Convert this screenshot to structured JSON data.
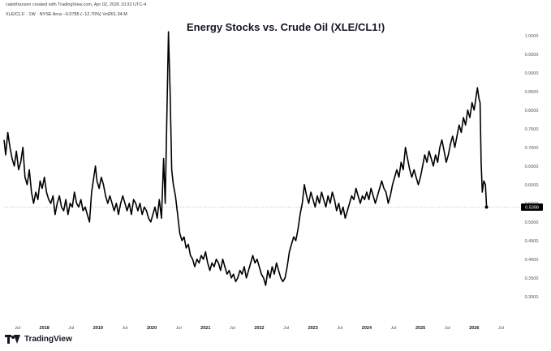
{
  "header": {
    "credit": "calebfranzen created with TradingView.com, Apr 02, 2026 10:32 UTC-4",
    "legend": "XLE/CL1! · 1W · NYSE Arca  −0.0785 (−12.70%)  Vol261.34 M"
  },
  "footer": {
    "brand": "TradingView",
    "logo_icon": "tradingview-logo-icon"
  },
  "colors": {
    "line": "#000000",
    "price_label_bg": "#000000",
    "price_label_text": "#ffffff",
    "axis_text": "#555555"
  },
  "chart_data": {
    "type": "line",
    "title": "Energy Stocks vs. Crude Oil (XLE/CL1!)",
    "xlabel": "",
    "ylabel": "",
    "ylim": [
      0.28,
      1.03
    ],
    "y_ticks": [
      0.3,
      0.35,
      0.4,
      0.45,
      0.5,
      0.55,
      0.6,
      0.65,
      0.7,
      0.75,
      0.8,
      0.85,
      0.9,
      0.95,
      1.0
    ],
    "y_tick_labels": [
      "0.3000",
      "0.3500",
      "0.4000",
      "0.4500",
      "0.5000",
      "0.5500",
      "0.6000",
      "0.6500",
      "0.7000",
      "0.7500",
      "0.8000",
      "0.8500",
      "0.9000",
      "0.9500",
      "1.0000"
    ],
    "x_ticks": [
      {
        "t": 2017.5,
        "label": "Jul",
        "year": false
      },
      {
        "t": 2018.0,
        "label": "2018",
        "year": true
      },
      {
        "t": 2018.5,
        "label": "Jul",
        "year": false
      },
      {
        "t": 2019.0,
        "label": "2019",
        "year": true
      },
      {
        "t": 2019.5,
        "label": "Jul",
        "year": false
      },
      {
        "t": 2020.0,
        "label": "2020",
        "year": true
      },
      {
        "t": 2020.5,
        "label": "Jul",
        "year": false
      },
      {
        "t": 2021.0,
        "label": "2021",
        "year": true
      },
      {
        "t": 2021.5,
        "label": "Jul",
        "year": false
      },
      {
        "t": 2022.0,
        "label": "2022",
        "year": true
      },
      {
        "t": 2022.5,
        "label": "Jul",
        "year": false
      },
      {
        "t": 2023.0,
        "label": "2023",
        "year": true
      },
      {
        "t": 2023.5,
        "label": "Jul",
        "year": false
      },
      {
        "t": 2024.0,
        "label": "2024",
        "year": true
      },
      {
        "t": 2024.5,
        "label": "Jul",
        "year": false
      },
      {
        "t": 2025.0,
        "label": "2025",
        "year": true
      },
      {
        "t": 2025.5,
        "label": "Jul",
        "year": false
      },
      {
        "t": 2026.0,
        "label": "2026",
        "year": true
      },
      {
        "t": 2026.5,
        "label": "Jul",
        "year": false
      }
    ],
    "xlim": [
      2017.25,
      2026.72
    ],
    "last_value": 0.5398,
    "last_value_label": "0.5398",
    "series": [
      {
        "values": [
          [
            2017.25,
            0.72
          ],
          [
            2017.28,
            0.68
          ],
          [
            2017.32,
            0.74
          ],
          [
            2017.36,
            0.7
          ],
          [
            2017.4,
            0.67
          ],
          [
            2017.44,
            0.65
          ],
          [
            2017.48,
            0.69
          ],
          [
            2017.52,
            0.64
          ],
          [
            2017.56,
            0.66
          ],
          [
            2017.6,
            0.7
          ],
          [
            2017.64,
            0.62
          ],
          [
            2017.68,
            0.6
          ],
          [
            2017.72,
            0.64
          ],
          [
            2017.76,
            0.58
          ],
          [
            2017.8,
            0.55
          ],
          [
            2017.84,
            0.58
          ],
          [
            2017.88,
            0.56
          ],
          [
            2017.92,
            0.61
          ],
          [
            2017.96,
            0.59
          ],
          [
            2018.0,
            0.62
          ],
          [
            2018.04,
            0.58
          ],
          [
            2018.08,
            0.56
          ],
          [
            2018.12,
            0.55
          ],
          [
            2018.16,
            0.57
          ],
          [
            2018.2,
            0.52
          ],
          [
            2018.24,
            0.55
          ],
          [
            2018.28,
            0.57
          ],
          [
            2018.32,
            0.54
          ],
          [
            2018.36,
            0.53
          ],
          [
            2018.4,
            0.56
          ],
          [
            2018.44,
            0.52
          ],
          [
            2018.48,
            0.55
          ],
          [
            2018.52,
            0.54
          ],
          [
            2018.56,
            0.58
          ],
          [
            2018.6,
            0.55
          ],
          [
            2018.64,
            0.54
          ],
          [
            2018.68,
            0.56
          ],
          [
            2018.72,
            0.53
          ],
          [
            2018.76,
            0.54
          ],
          [
            2018.8,
            0.52
          ],
          [
            2018.84,
            0.5
          ],
          [
            2018.88,
            0.58
          ],
          [
            2018.92,
            0.62
          ],
          [
            2018.95,
            0.65
          ],
          [
            2018.98,
            0.61
          ],
          [
            2019.02,
            0.59
          ],
          [
            2019.06,
            0.62
          ],
          [
            2019.1,
            0.6
          ],
          [
            2019.14,
            0.57
          ],
          [
            2019.18,
            0.55
          ],
          [
            2019.22,
            0.57
          ],
          [
            2019.26,
            0.55
          ],
          [
            2019.3,
            0.53
          ],
          [
            2019.34,
            0.55
          ],
          [
            2019.38,
            0.52
          ],
          [
            2019.42,
            0.55
          ],
          [
            2019.46,
            0.57
          ],
          [
            2019.5,
            0.55
          ],
          [
            2019.54,
            0.53
          ],
          [
            2019.58,
            0.55
          ],
          [
            2019.62,
            0.52
          ],
          [
            2019.66,
            0.56
          ],
          [
            2019.7,
            0.55
          ],
          [
            2019.74,
            0.53
          ],
          [
            2019.78,
            0.55
          ],
          [
            2019.82,
            0.52
          ],
          [
            2019.86,
            0.54
          ],
          [
            2019.9,
            0.53
          ],
          [
            2019.94,
            0.51
          ],
          [
            2019.98,
            0.5
          ],
          [
            2020.02,
            0.52
          ],
          [
            2020.06,
            0.54
          ],
          [
            2020.1,
            0.51
          ],
          [
            2020.14,
            0.56
          ],
          [
            2020.18,
            0.51
          ],
          [
            2020.22,
            0.67
          ],
          [
            2020.25,
            0.55
          ],
          [
            2020.28,
            0.78
          ],
          [
            2020.31,
            1.01
          ],
          [
            2020.34,
            0.85
          ],
          [
            2020.37,
            0.64
          ],
          [
            2020.4,
            0.6
          ],
          [
            2020.44,
            0.57
          ],
          [
            2020.48,
            0.52
          ],
          [
            2020.52,
            0.47
          ],
          [
            2020.56,
            0.45
          ],
          [
            2020.6,
            0.46
          ],
          [
            2020.64,
            0.43
          ],
          [
            2020.68,
            0.44
          ],
          [
            2020.72,
            0.41
          ],
          [
            2020.76,
            0.4
          ],
          [
            2020.8,
            0.38
          ],
          [
            2020.84,
            0.4
          ],
          [
            2020.88,
            0.39
          ],
          [
            2020.92,
            0.41
          ],
          [
            2020.96,
            0.4
          ],
          [
            2021.0,
            0.42
          ],
          [
            2021.04,
            0.39
          ],
          [
            2021.08,
            0.37
          ],
          [
            2021.12,
            0.39
          ],
          [
            2021.16,
            0.38
          ],
          [
            2021.2,
            0.4
          ],
          [
            2021.24,
            0.39
          ],
          [
            2021.28,
            0.37
          ],
          [
            2021.32,
            0.4
          ],
          [
            2021.36,
            0.38
          ],
          [
            2021.4,
            0.36
          ],
          [
            2021.44,
            0.37
          ],
          [
            2021.48,
            0.35
          ],
          [
            2021.52,
            0.36
          ],
          [
            2021.56,
            0.34
          ],
          [
            2021.6,
            0.35
          ],
          [
            2021.64,
            0.37
          ],
          [
            2021.68,
            0.36
          ],
          [
            2021.72,
            0.38
          ],
          [
            2021.76,
            0.35
          ],
          [
            2021.8,
            0.37
          ],
          [
            2021.84,
            0.39
          ],
          [
            2021.88,
            0.41
          ],
          [
            2021.92,
            0.39
          ],
          [
            2021.96,
            0.4
          ],
          [
            2022.0,
            0.38
          ],
          [
            2022.04,
            0.36
          ],
          [
            2022.08,
            0.35
          ],
          [
            2022.12,
            0.33
          ],
          [
            2022.16,
            0.37
          ],
          [
            2022.2,
            0.35
          ],
          [
            2022.24,
            0.38
          ],
          [
            2022.28,
            0.36
          ],
          [
            2022.32,
            0.39
          ],
          [
            2022.36,
            0.37
          ],
          [
            2022.4,
            0.35
          ],
          [
            2022.44,
            0.34
          ],
          [
            2022.48,
            0.35
          ],
          [
            2022.52,
            0.38
          ],
          [
            2022.56,
            0.42
          ],
          [
            2022.6,
            0.44
          ],
          [
            2022.64,
            0.46
          ],
          [
            2022.68,
            0.45
          ],
          [
            2022.72,
            0.48
          ],
          [
            2022.76,
            0.52
          ],
          [
            2022.8,
            0.55
          ],
          [
            2022.84,
            0.6
          ],
          [
            2022.88,
            0.57
          ],
          [
            2022.92,
            0.55
          ],
          [
            2022.96,
            0.58
          ],
          [
            2023.0,
            0.56
          ],
          [
            2023.04,
            0.54
          ],
          [
            2023.08,
            0.57
          ],
          [
            2023.12,
            0.55
          ],
          [
            2023.16,
            0.58
          ],
          [
            2023.2,
            0.56
          ],
          [
            2023.24,
            0.54
          ],
          [
            2023.28,
            0.57
          ],
          [
            2023.32,
            0.55
          ],
          [
            2023.36,
            0.58
          ],
          [
            2023.4,
            0.56
          ],
          [
            2023.44,
            0.53
          ],
          [
            2023.48,
            0.55
          ],
          [
            2023.52,
            0.52
          ],
          [
            2023.56,
            0.54
          ],
          [
            2023.6,
            0.51
          ],
          [
            2023.64,
            0.53
          ],
          [
            2023.68,
            0.55
          ],
          [
            2023.72,
            0.57
          ],
          [
            2023.76,
            0.56
          ],
          [
            2023.8,
            0.59
          ],
          [
            2023.84,
            0.57
          ],
          [
            2023.88,
            0.55
          ],
          [
            2023.92,
            0.57
          ],
          [
            2023.96,
            0.56
          ],
          [
            2024.0,
            0.58
          ],
          [
            2024.04,
            0.56
          ],
          [
            2024.08,
            0.59
          ],
          [
            2024.12,
            0.57
          ],
          [
            2024.16,
            0.55
          ],
          [
            2024.2,
            0.57
          ],
          [
            2024.24,
            0.59
          ],
          [
            2024.28,
            0.61
          ],
          [
            2024.32,
            0.59
          ],
          [
            2024.36,
            0.58
          ],
          [
            2024.4,
            0.55
          ],
          [
            2024.44,
            0.57
          ],
          [
            2024.48,
            0.6
          ],
          [
            2024.52,
            0.62
          ],
          [
            2024.56,
            0.64
          ],
          [
            2024.6,
            0.62
          ],
          [
            2024.64,
            0.66
          ],
          [
            2024.68,
            0.64
          ],
          [
            2024.72,
            0.7
          ],
          [
            2024.76,
            0.67
          ],
          [
            2024.8,
            0.64
          ],
          [
            2024.84,
            0.62
          ],
          [
            2024.88,
            0.64
          ],
          [
            2024.92,
            0.62
          ],
          [
            2024.96,
            0.6
          ],
          [
            2025.0,
            0.62
          ],
          [
            2025.04,
            0.65
          ],
          [
            2025.08,
            0.68
          ],
          [
            2025.12,
            0.66
          ],
          [
            2025.16,
            0.69
          ],
          [
            2025.2,
            0.67
          ],
          [
            2025.24,
            0.65
          ],
          [
            2025.28,
            0.68
          ],
          [
            2025.32,
            0.66
          ],
          [
            2025.36,
            0.7
          ],
          [
            2025.4,
            0.72
          ],
          [
            2025.44,
            0.69
          ],
          [
            2025.48,
            0.66
          ],
          [
            2025.52,
            0.68
          ],
          [
            2025.56,
            0.71
          ],
          [
            2025.6,
            0.73
          ],
          [
            2025.64,
            0.7
          ],
          [
            2025.68,
            0.73
          ],
          [
            2025.72,
            0.76
          ],
          [
            2025.76,
            0.74
          ],
          [
            2025.8,
            0.78
          ],
          [
            2025.84,
            0.76
          ],
          [
            2025.88,
            0.8
          ],
          [
            2025.92,
            0.78
          ],
          [
            2025.96,
            0.82
          ],
          [
            2026.0,
            0.8
          ],
          [
            2026.03,
            0.83
          ],
          [
            2026.06,
            0.86
          ],
          [
            2026.09,
            0.83
          ],
          [
            2026.11,
            0.82
          ],
          [
            2026.13,
            0.66
          ],
          [
            2026.15,
            0.58
          ],
          [
            2026.18,
            0.61
          ],
          [
            2026.21,
            0.6
          ],
          [
            2026.23,
            0.5398
          ]
        ]
      }
    ]
  }
}
